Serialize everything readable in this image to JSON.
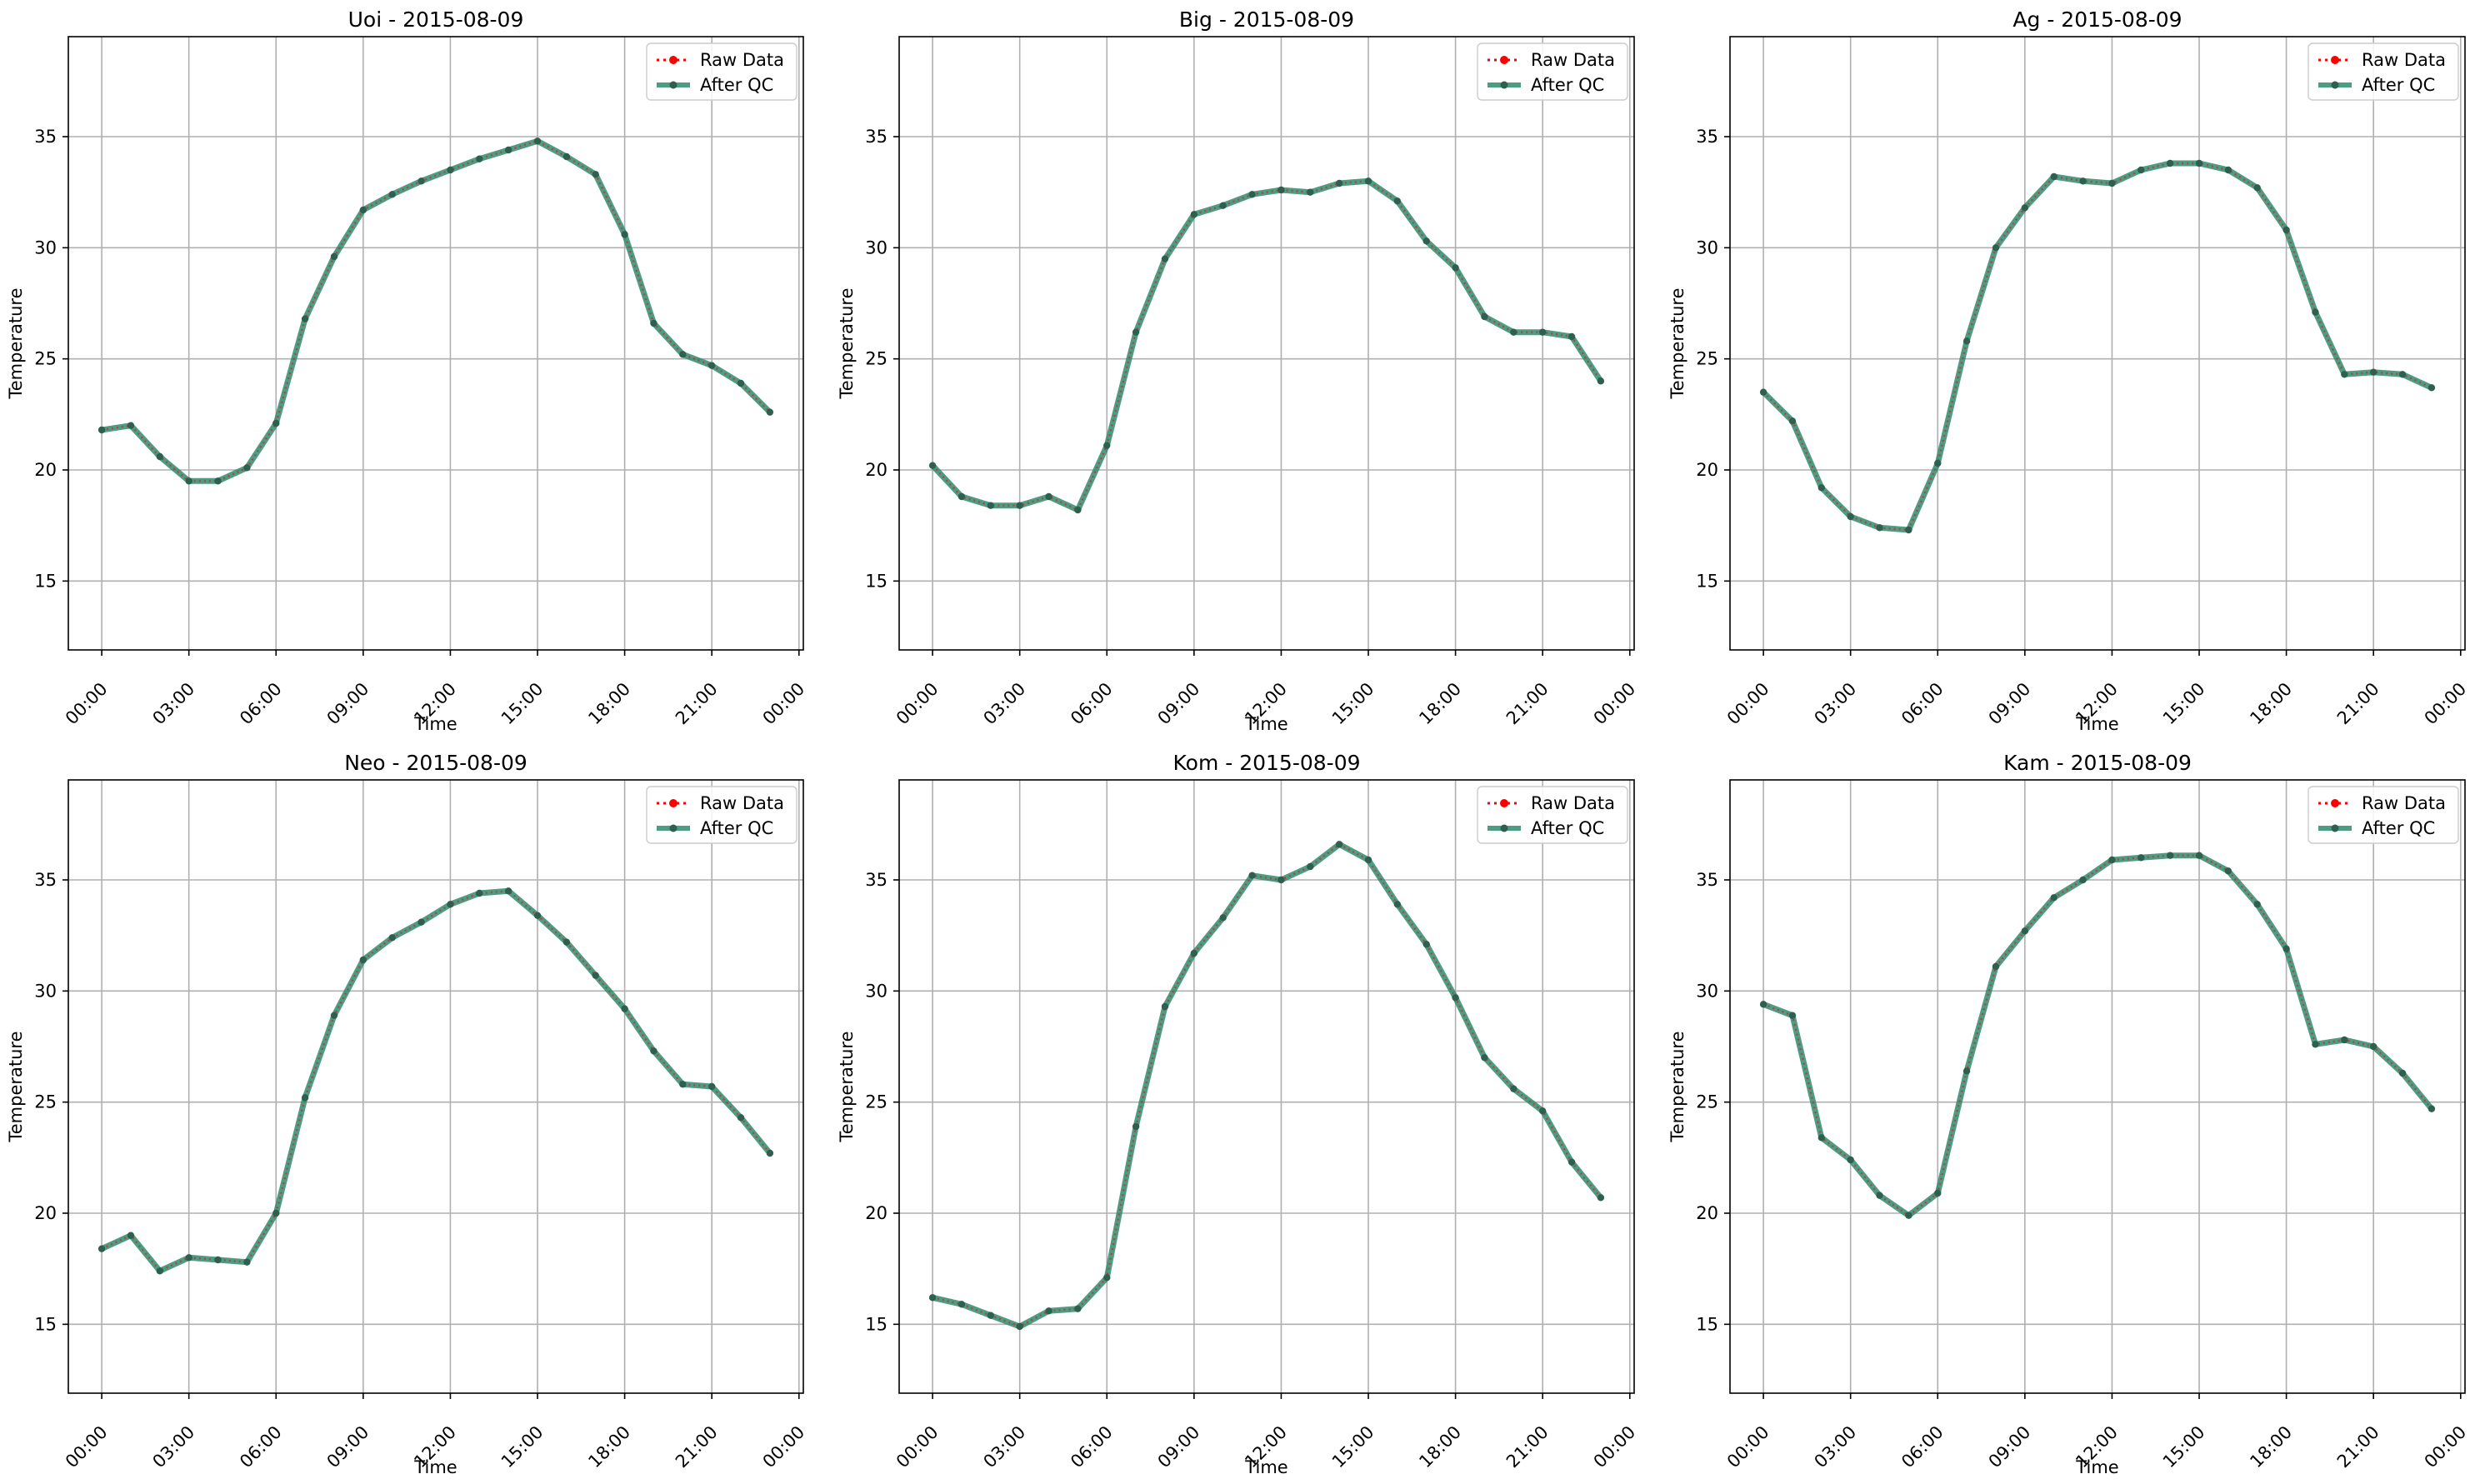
{
  "chart_data": [
    {
      "type": "line",
      "title": "Uoi - 2015-08-09",
      "xlabel": "Time",
      "ylabel": "Temperature",
      "x_ticks": [
        "00:00",
        "03:00",
        "06:00",
        "09:00",
        "12:00",
        "15:00",
        "18:00",
        "21:00",
        "00:00"
      ],
      "y_ticks": [
        15,
        20,
        25,
        30,
        35
      ],
      "ylim": [
        11.9,
        39.5
      ],
      "grid": true,
      "legend": {
        "position": "top-right",
        "entries": [
          "Raw Data",
          "After QC"
        ]
      },
      "x": [
        "00:00",
        "01:00",
        "02:00",
        "03:00",
        "04:00",
        "05:00",
        "06:00",
        "07:00",
        "08:00",
        "09:00",
        "10:00",
        "11:00",
        "12:00",
        "13:00",
        "14:00",
        "15:00",
        "16:00",
        "17:00",
        "18:00",
        "19:00",
        "20:00",
        "21:00",
        "22:00",
        "23:00"
      ],
      "series": [
        {
          "name": "Raw Data",
          "values": [
            21.8,
            22.0,
            20.6,
            19.5,
            19.5,
            20.1,
            22.1,
            26.8,
            29.6,
            31.7,
            32.4,
            33.0,
            33.5,
            34.0,
            34.4,
            34.8,
            34.1,
            33.3,
            30.6,
            26.6,
            25.2,
            24.7,
            23.9,
            22.6
          ]
        },
        {
          "name": "After QC",
          "values": [
            21.8,
            22.0,
            20.6,
            19.5,
            19.5,
            20.1,
            22.1,
            26.8,
            29.6,
            31.7,
            32.4,
            33.0,
            33.5,
            34.0,
            34.4,
            34.8,
            34.1,
            33.3,
            30.6,
            26.6,
            25.2,
            24.7,
            23.9,
            22.6
          ]
        }
      ]
    },
    {
      "type": "line",
      "title": "Big - 2015-08-09",
      "xlabel": "Time",
      "ylabel": "Temperature",
      "x_ticks": [
        "00:00",
        "03:00",
        "06:00",
        "09:00",
        "12:00",
        "15:00",
        "18:00",
        "21:00",
        "00:00"
      ],
      "y_ticks": [
        15,
        20,
        25,
        30,
        35
      ],
      "ylim": [
        11.9,
        39.5
      ],
      "grid": true,
      "legend": {
        "position": "top-right",
        "entries": [
          "Raw Data",
          "After QC"
        ]
      },
      "x": [
        "00:00",
        "01:00",
        "02:00",
        "03:00",
        "04:00",
        "05:00",
        "06:00",
        "07:00",
        "08:00",
        "09:00",
        "10:00",
        "11:00",
        "12:00",
        "13:00",
        "14:00",
        "15:00",
        "16:00",
        "17:00",
        "18:00",
        "19:00",
        "20:00",
        "21:00",
        "22:00",
        "23:00"
      ],
      "series": [
        {
          "name": "Raw Data",
          "values": [
            20.2,
            18.8,
            18.4,
            18.4,
            18.8,
            18.2,
            21.1,
            26.2,
            29.5,
            31.5,
            31.9,
            32.4,
            32.6,
            32.5,
            32.9,
            33.0,
            32.1,
            30.3,
            29.1,
            26.9,
            26.2,
            26.2,
            26.0,
            24.0
          ]
        },
        {
          "name": "After QC",
          "values": [
            20.2,
            18.8,
            18.4,
            18.4,
            18.8,
            18.2,
            21.1,
            26.2,
            29.5,
            31.5,
            31.9,
            32.4,
            32.6,
            32.5,
            32.9,
            33.0,
            32.1,
            30.3,
            29.1,
            26.9,
            26.2,
            26.2,
            26.0,
            24.0
          ]
        }
      ]
    },
    {
      "type": "line",
      "title": "Ag - 2015-08-09",
      "xlabel": "Time",
      "ylabel": "Temperature",
      "x_ticks": [
        "00:00",
        "03:00",
        "06:00",
        "09:00",
        "12:00",
        "15:00",
        "18:00",
        "21:00",
        "00:00"
      ],
      "y_ticks": [
        15,
        20,
        25,
        30,
        35
      ],
      "ylim": [
        11.9,
        39.5
      ],
      "grid": true,
      "legend": {
        "position": "top-right",
        "entries": [
          "Raw Data",
          "After QC"
        ]
      },
      "x": [
        "00:00",
        "01:00",
        "02:00",
        "03:00",
        "04:00",
        "05:00",
        "06:00",
        "07:00",
        "08:00",
        "09:00",
        "10:00",
        "11:00",
        "12:00",
        "13:00",
        "14:00",
        "15:00",
        "16:00",
        "17:00",
        "18:00",
        "19:00",
        "20:00",
        "21:00",
        "22:00",
        "23:00"
      ],
      "series": [
        {
          "name": "Raw Data",
          "values": [
            23.5,
            22.2,
            19.2,
            17.9,
            17.4,
            17.3,
            20.3,
            25.8,
            30.0,
            31.8,
            33.2,
            33.0,
            32.9,
            33.5,
            33.8,
            33.8,
            33.5,
            32.7,
            30.8,
            27.1,
            24.3,
            24.4,
            24.3,
            23.7
          ]
        },
        {
          "name": "After QC",
          "values": [
            23.5,
            22.2,
            19.2,
            17.9,
            17.4,
            17.3,
            20.3,
            25.8,
            30.0,
            31.8,
            33.2,
            33.0,
            32.9,
            33.5,
            33.8,
            33.8,
            33.5,
            32.7,
            30.8,
            27.1,
            24.3,
            24.4,
            24.3,
            23.7
          ]
        }
      ]
    },
    {
      "type": "line",
      "title": "Neo - 2015-08-09",
      "xlabel": "Time",
      "ylabel": "Temperature",
      "x_ticks": [
        "00:00",
        "03:00",
        "06:00",
        "09:00",
        "12:00",
        "15:00",
        "18:00",
        "21:00",
        "00:00"
      ],
      "y_ticks": [
        15,
        20,
        25,
        30,
        35
      ],
      "ylim": [
        11.9,
        39.5
      ],
      "grid": true,
      "legend": {
        "position": "top-right",
        "entries": [
          "Raw Data",
          "After QC"
        ]
      },
      "x": [
        "00:00",
        "01:00",
        "02:00",
        "03:00",
        "04:00",
        "05:00",
        "06:00",
        "07:00",
        "08:00",
        "09:00",
        "10:00",
        "11:00",
        "12:00",
        "13:00",
        "14:00",
        "15:00",
        "16:00",
        "17:00",
        "18:00",
        "19:00",
        "20:00",
        "21:00",
        "22:00",
        "23:00"
      ],
      "series": [
        {
          "name": "Raw Data",
          "values": [
            18.4,
            19.0,
            17.4,
            18.0,
            17.9,
            17.8,
            20.0,
            25.2,
            28.9,
            31.4,
            32.4,
            33.1,
            33.9,
            34.4,
            34.5,
            33.4,
            32.2,
            30.7,
            29.2,
            27.3,
            25.8,
            25.7,
            24.3,
            22.7
          ]
        },
        {
          "name": "After QC",
          "values": [
            18.4,
            19.0,
            17.4,
            18.0,
            17.9,
            17.8,
            20.0,
            25.2,
            28.9,
            31.4,
            32.4,
            33.1,
            33.9,
            34.4,
            34.5,
            33.4,
            32.2,
            30.7,
            29.2,
            27.3,
            25.8,
            25.7,
            24.3,
            22.7
          ]
        }
      ]
    },
    {
      "type": "line",
      "title": "Kom - 2015-08-09",
      "xlabel": "Time",
      "ylabel": "Temperature",
      "x_ticks": [
        "00:00",
        "03:00",
        "06:00",
        "09:00",
        "12:00",
        "15:00",
        "18:00",
        "21:00",
        "00:00"
      ],
      "y_ticks": [
        15,
        20,
        25,
        30,
        35
      ],
      "ylim": [
        11.9,
        39.5
      ],
      "grid": true,
      "legend": {
        "position": "top-right",
        "entries": [
          "Raw Data",
          "After QC"
        ]
      },
      "x": [
        "00:00",
        "01:00",
        "02:00",
        "03:00",
        "04:00",
        "05:00",
        "06:00",
        "07:00",
        "08:00",
        "09:00",
        "10:00",
        "11:00",
        "12:00",
        "13:00",
        "14:00",
        "15:00",
        "16:00",
        "17:00",
        "18:00",
        "19:00",
        "20:00",
        "21:00",
        "22:00",
        "23:00"
      ],
      "series": [
        {
          "name": "Raw Data",
          "values": [
            16.2,
            15.9,
            15.4,
            14.9,
            15.6,
            15.7,
            17.1,
            23.9,
            29.3,
            31.7,
            33.3,
            35.2,
            35.0,
            35.6,
            36.6,
            35.9,
            33.9,
            32.1,
            29.7,
            27.0,
            25.6,
            24.6,
            22.3,
            20.7
          ]
        },
        {
          "name": "After QC",
          "values": [
            16.2,
            15.9,
            15.4,
            14.9,
            15.6,
            15.7,
            17.1,
            23.9,
            29.3,
            31.7,
            33.3,
            35.2,
            35.0,
            35.6,
            36.6,
            35.9,
            33.9,
            32.1,
            29.7,
            27.0,
            25.6,
            24.6,
            22.3,
            20.7
          ]
        }
      ]
    },
    {
      "type": "line",
      "title": "Kam - 2015-08-09",
      "xlabel": "Time",
      "ylabel": "Temperature",
      "x_ticks": [
        "00:00",
        "03:00",
        "06:00",
        "09:00",
        "12:00",
        "15:00",
        "18:00",
        "21:00",
        "00:00"
      ],
      "y_ticks": [
        15,
        20,
        25,
        30,
        35
      ],
      "ylim": [
        11.9,
        39.5
      ],
      "grid": true,
      "legend": {
        "position": "top-right",
        "entries": [
          "Raw Data",
          "After QC"
        ]
      },
      "x": [
        "00:00",
        "01:00",
        "02:00",
        "03:00",
        "04:00",
        "05:00",
        "06:00",
        "07:00",
        "08:00",
        "09:00",
        "10:00",
        "11:00",
        "12:00",
        "13:00",
        "14:00",
        "15:00",
        "16:00",
        "17:00",
        "18:00",
        "19:00",
        "20:00",
        "21:00",
        "22:00",
        "23:00"
      ],
      "series": [
        {
          "name": "Raw Data",
          "values": [
            29.4,
            28.9,
            23.4,
            22.4,
            20.8,
            19.9,
            20.9,
            26.4,
            31.1,
            32.7,
            34.2,
            35.0,
            35.9,
            36.0,
            36.1,
            36.1,
            35.4,
            33.9,
            31.9,
            27.6,
            27.8,
            27.5,
            26.3,
            24.7
          ]
        },
        {
          "name": "After QC",
          "values": [
            29.4,
            28.9,
            23.4,
            22.4,
            20.8,
            19.9,
            20.9,
            26.4,
            31.1,
            32.7,
            34.2,
            35.0,
            35.9,
            36.0,
            36.1,
            36.1,
            35.4,
            33.9,
            31.9,
            27.6,
            27.8,
            27.5,
            26.3,
            24.7
          ]
        }
      ]
    }
  ],
  "colors": {
    "raw": "#ff0000",
    "qc": "#2e8b6f",
    "qc_marker": "#2f5f4f",
    "grid": "#b0b0b0",
    "axes": "#000000"
  }
}
